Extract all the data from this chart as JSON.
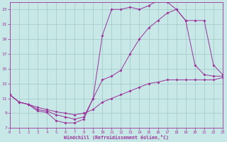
{
  "xlabel": "Windchill (Refroidissement éolien,°C)",
  "xlim": [
    0,
    23
  ],
  "ylim": [
    7,
    24
  ],
  "xticks": [
    0,
    1,
    2,
    3,
    4,
    5,
    6,
    7,
    8,
    9,
    10,
    11,
    12,
    13,
    14,
    15,
    16,
    17,
    18,
    19,
    20,
    21,
    22,
    23
  ],
  "yticks": [
    7,
    9,
    11,
    13,
    15,
    17,
    19,
    21,
    23
  ],
  "bg_color": "#c8e8e8",
  "line_color": "#993399",
  "grid_color": "#a0c8c8",
  "line1_x": [
    0,
    1,
    2,
    3,
    4,
    5,
    6,
    7,
    8,
    9,
    10,
    11,
    12,
    13,
    14,
    15,
    16,
    17,
    18,
    19,
    20,
    21,
    22,
    23
  ],
  "line1_y": [
    11.5,
    10.5,
    10.2,
    9.3,
    9.1,
    8.0,
    7.7,
    7.7,
    8.2,
    11.0,
    19.5,
    23.0,
    23.0,
    23.3,
    23.0,
    23.5,
    24.2,
    24.0,
    23.0,
    21.5,
    15.5,
    14.2,
    14.0,
    14.0
  ],
  "line2_x": [
    0,
    1,
    2,
    3,
    4,
    5,
    6,
    7,
    8,
    9,
    10,
    11,
    12,
    13,
    14,
    15,
    16,
    17,
    18,
    19,
    20,
    21,
    22,
    23
  ],
  "line2_y": [
    11.5,
    10.5,
    10.2,
    9.5,
    9.3,
    8.8,
    8.5,
    8.2,
    8.5,
    11.0,
    13.5,
    14.0,
    14.8,
    17.0,
    19.0,
    20.5,
    21.5,
    22.5,
    23.0,
    21.5,
    21.5,
    21.5,
    15.5,
    14.2
  ],
  "line3_x": [
    0,
    1,
    2,
    3,
    4,
    5,
    6,
    7,
    8,
    9,
    10,
    11,
    12,
    13,
    14,
    15,
    16,
    17,
    18,
    19,
    20,
    21,
    22,
    23
  ],
  "line3_y": [
    11.5,
    10.5,
    10.2,
    9.8,
    9.5,
    9.2,
    9.0,
    8.8,
    9.0,
    9.5,
    10.5,
    11.0,
    11.5,
    12.0,
    12.5,
    13.0,
    13.2,
    13.5,
    13.5,
    13.5,
    13.5,
    13.5,
    13.5,
    13.8
  ]
}
